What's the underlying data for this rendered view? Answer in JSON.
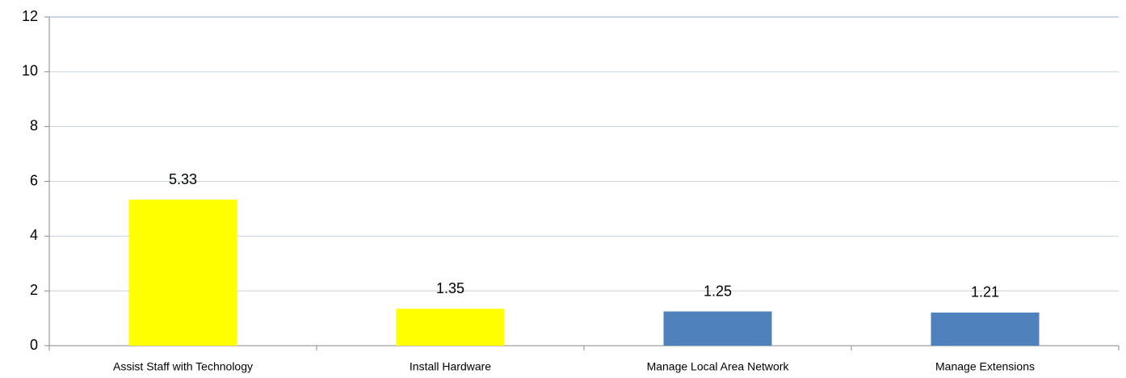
{
  "chart_data": {
    "type": "bar",
    "categories": [
      "Assist Staff with Technology",
      "Install Hardware",
      "Manage Local Area Network",
      "Manage Extensions"
    ],
    "values": [
      5.33,
      1.35,
      1.25,
      1.21
    ],
    "colors": [
      "#ffff00",
      "#ffff00",
      "#4f81bd",
      "#4f81bd"
    ],
    "ylim": [
      0,
      12
    ],
    "yticks": [
      0,
      2,
      4,
      6,
      8,
      10,
      12
    ],
    "grid": true
  }
}
